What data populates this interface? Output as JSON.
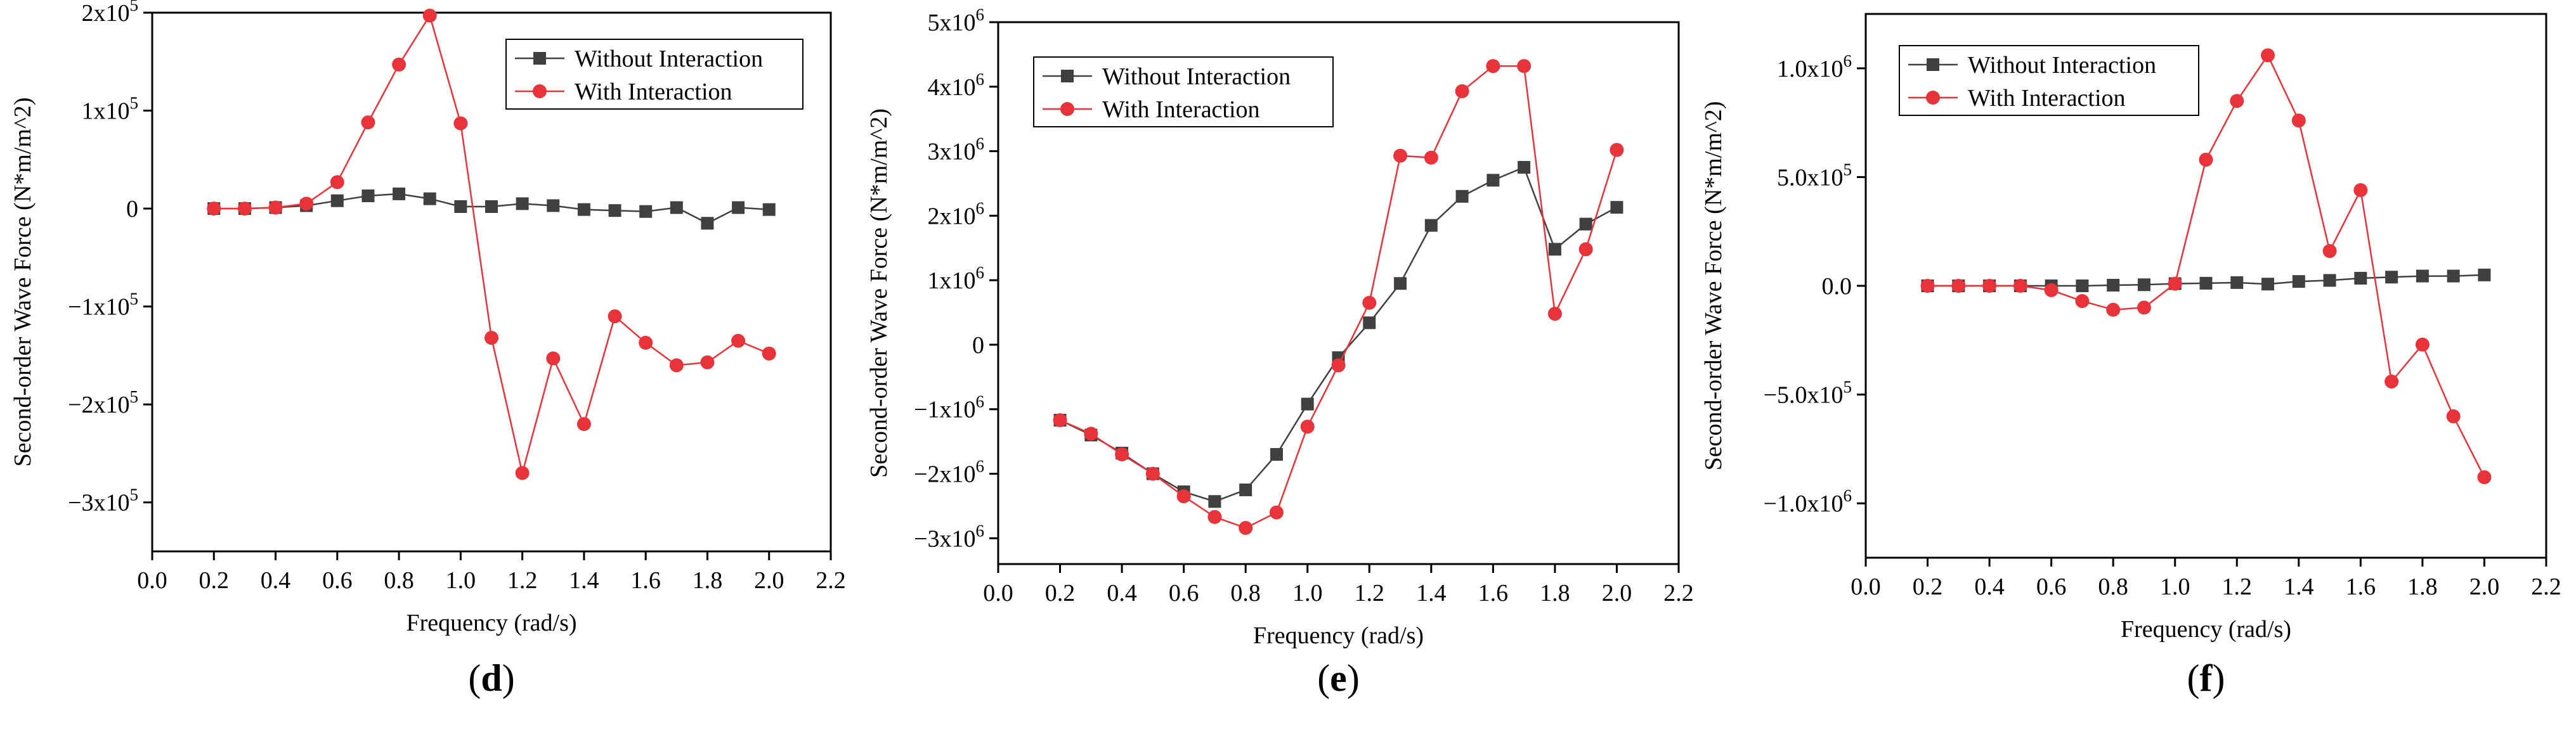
{
  "chart_data": [
    {
      "panel_label": "(d)",
      "type": "line",
      "title": "",
      "xlabel": "Frequency (rad/s)",
      "ylabel": "Second-order Wave Force (N*m/m^2)",
      "xlim": [
        0.0,
        2.2
      ],
      "ylim": [
        -350000,
        200000
      ],
      "x_ticks": [
        0.0,
        0.2,
        0.4,
        0.6,
        0.8,
        1.0,
        1.2,
        1.4,
        1.6,
        1.8,
        2.0,
        2.2
      ],
      "x_tick_labels": [
        "0.0",
        "0.2",
        "0.4",
        "0.6",
        "0.8",
        "1.0",
        "1.2",
        "1.4",
        "1.6",
        "1.8",
        "2.0",
        "2.2"
      ],
      "y_ticks": [
        -300000,
        -200000,
        -100000,
        0,
        100000,
        200000
      ],
      "y_tick_labels": [
        {
          "base": "−3x10",
          "exp": "5"
        },
        {
          "base": "−2x10",
          "exp": "5"
        },
        {
          "base": "−1x10",
          "exp": "5"
        },
        {
          "base": "0",
          "exp": ""
        },
        {
          "base": "1x10",
          "exp": "5"
        },
        {
          "base": "2x10",
          "exp": "5"
        }
      ],
      "legend_position": "top-right",
      "x": [
        0.2,
        0.3,
        0.4,
        0.5,
        0.6,
        0.7,
        0.8,
        0.9,
        1.0,
        1.1,
        1.2,
        1.3,
        1.4,
        1.5,
        1.6,
        1.7,
        1.8,
        1.9,
        2.0
      ],
      "series": [
        {
          "name": "Without Interaction",
          "color": "#404040",
          "marker": "square",
          "values": [
            0,
            0,
            1000,
            3000,
            8000,
            13000,
            15000,
            10000,
            2000,
            2000,
            5000,
            3000,
            -1000,
            -2000,
            -3000,
            1000,
            -15000,
            1000,
            -1000
          ]
        },
        {
          "name": "With Interaction",
          "color": "#e8333a",
          "marker": "circle",
          "values": [
            0,
            0,
            1000,
            5000,
            27000,
            88000,
            147000,
            197000,
            87000,
            -132000,
            -270000,
            -153000,
            -220000,
            -110000,
            -137000,
            -160000,
            -157000,
            -135000,
            -148000
          ]
        }
      ]
    },
    {
      "panel_label": "(e)",
      "type": "line",
      "title": "",
      "xlabel": "Frequency (rad/s)",
      "ylabel": "Second-order Wave Force (N*m/m^2)",
      "xlim": [
        0.0,
        2.2
      ],
      "ylim": [
        -3400000,
        5000000
      ],
      "x_ticks": [
        0.0,
        0.2,
        0.4,
        0.6,
        0.8,
        1.0,
        1.2,
        1.4,
        1.6,
        1.8,
        2.0,
        2.2
      ],
      "x_tick_labels": [
        "0.0",
        "0.2",
        "0.4",
        "0.6",
        "0.8",
        "1.0",
        "1.2",
        "1.4",
        "1.6",
        "1.8",
        "2.0",
        "2.2"
      ],
      "y_ticks": [
        -3000000,
        -2000000,
        -1000000,
        0,
        1000000,
        2000000,
        3000000,
        4000000,
        5000000
      ],
      "y_tick_labels": [
        {
          "base": "−3x10",
          "exp": "6"
        },
        {
          "base": "−2x10",
          "exp": "6"
        },
        {
          "base": "−1x10",
          "exp": "6"
        },
        {
          "base": "0",
          "exp": ""
        },
        {
          "base": "1x10",
          "exp": "6"
        },
        {
          "base": "2x10",
          "exp": "6"
        },
        {
          "base": "3x10",
          "exp": "6"
        },
        {
          "base": "4x10",
          "exp": "6"
        },
        {
          "base": "5x10",
          "exp": "6"
        }
      ],
      "legend_position": "top-left",
      "x": [
        0.2,
        0.3,
        0.4,
        0.5,
        0.6,
        0.7,
        0.8,
        0.9,
        1.0,
        1.1,
        1.2,
        1.3,
        1.4,
        1.5,
        1.6,
        1.7,
        1.8,
        1.9,
        2.0
      ],
      "series": [
        {
          "name": "Without Interaction",
          "color": "#404040",
          "marker": "square",
          "values": [
            -1170000,
            -1400000,
            -1680000,
            -2000000,
            -2280000,
            -2430000,
            -2250000,
            -1700000,
            -920000,
            -200000,
            340000,
            950000,
            1850000,
            2300000,
            2550000,
            2750000,
            1480000,
            1870000,
            2130000
          ]
        },
        {
          "name": "With Interaction",
          "color": "#e8333a",
          "marker": "circle",
          "values": [
            -1170000,
            -1380000,
            -1700000,
            -2000000,
            -2350000,
            -2670000,
            -2840000,
            -2600000,
            -1270000,
            -320000,
            650000,
            2930000,
            2900000,
            3930000,
            4320000,
            4320000,
            480000,
            1480000,
            3020000
          ]
        }
      ]
    },
    {
      "panel_label": "(f)",
      "type": "line",
      "title": "",
      "xlabel": "Frequency (rad/s)",
      "ylabel": "Second-order Wave Force (N*m/m^2)",
      "xlim": [
        0.0,
        2.2
      ],
      "ylim": [
        -1250000,
        1250000
      ],
      "x_ticks": [
        0.0,
        0.2,
        0.4,
        0.6,
        0.8,
        1.0,
        1.2,
        1.4,
        1.6,
        1.8,
        2.0,
        2.2
      ],
      "x_tick_labels": [
        "0.0",
        "0.2",
        "0.4",
        "0.6",
        "0.8",
        "1.0",
        "1.2",
        "1.4",
        "1.6",
        "1.8",
        "2.0",
        "2.2"
      ],
      "y_ticks": [
        -1000000,
        -500000,
        0,
        500000,
        1000000
      ],
      "y_tick_labels": [
        {
          "base": "−1.0x10",
          "exp": "6"
        },
        {
          "base": "−5.0x10",
          "exp": "5"
        },
        {
          "base": "0.0",
          "exp": ""
        },
        {
          "base": "5.0x10",
          "exp": "5"
        },
        {
          "base": "1.0x10",
          "exp": "6"
        }
      ],
      "legend_position": "top-left",
      "x": [
        0.2,
        0.3,
        0.4,
        0.5,
        0.6,
        0.7,
        0.8,
        0.9,
        1.0,
        1.1,
        1.2,
        1.3,
        1.4,
        1.5,
        1.6,
        1.7,
        1.8,
        1.9,
        2.0
      ],
      "series": [
        {
          "name": "Without Interaction",
          "color": "#404040",
          "marker": "square",
          "values": [
            0,
            0,
            0,
            0,
            0,
            0,
            3000,
            5000,
            10000,
            12000,
            15000,
            8000,
            20000,
            25000,
            35000,
            40000,
            45000,
            45000,
            50000
          ]
        },
        {
          "name": "With Interaction",
          "color": "#e8333a",
          "marker": "circle",
          "values": [
            0,
            0,
            0,
            0,
            -20000,
            -70000,
            -110000,
            -100000,
            10000,
            580000,
            850000,
            1060000,
            760000,
            160000,
            440000,
            -440000,
            -270000,
            -600000,
            -880000
          ]
        }
      ]
    }
  ]
}
